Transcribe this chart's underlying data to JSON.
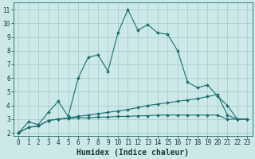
{
  "xlabel": "Humidex (Indice chaleur)",
  "bg_color": "#cce8e8",
  "grid_color": "#aacece",
  "line_color": "#1a6e6e",
  "xlim_min": -0.5,
  "xlim_max": 23.5,
  "ylim_min": 1.8,
  "ylim_max": 11.5,
  "xticks": [
    0,
    1,
    2,
    3,
    4,
    5,
    6,
    7,
    8,
    9,
    10,
    11,
    12,
    13,
    14,
    15,
    16,
    17,
    18,
    19,
    20,
    21,
    22,
    23
  ],
  "yticks": [
    2,
    3,
    4,
    5,
    6,
    7,
    8,
    9,
    10,
    11
  ],
  "series": [
    {
      "x": [
        0,
        1,
        2,
        3,
        4,
        5,
        6,
        7,
        8,
        9,
        10,
        11,
        12,
        13,
        14,
        15,
        16,
        17,
        18,
        19,
        20,
        21,
        22,
        23
      ],
      "y": [
        2.0,
        2.8,
        2.6,
        3.5,
        4.3,
        3.2,
        6.0,
        7.5,
        7.7,
        6.5,
        9.3,
        11.0,
        9.5,
        9.9,
        9.3,
        9.2,
        8.0,
        5.7,
        5.3,
        5.5,
        4.7,
        4.0,
        3.0,
        3.0
      ],
      "marker": "D",
      "markersize": 2.0,
      "linewidth": 0.8
    },
    {
      "x": [
        0,
        1,
        2,
        3,
        4,
        5,
        6,
        7,
        8,
        9,
        10,
        11,
        12,
        13,
        14,
        15,
        16,
        17,
        18,
        19,
        20,
        21,
        22,
        23
      ],
      "y": [
        2.0,
        2.4,
        2.5,
        2.9,
        3.0,
        3.1,
        3.2,
        3.3,
        3.4,
        3.5,
        3.6,
        3.7,
        3.85,
        4.0,
        4.1,
        4.2,
        4.3,
        4.4,
        4.5,
        4.65,
        4.8,
        3.3,
        3.0,
        3.0
      ],
      "marker": "D",
      "markersize": 2.0,
      "linewidth": 0.8
    },
    {
      "x": [
        0,
        1,
        2,
        3,
        4,
        5,
        6,
        7,
        8,
        9,
        10,
        11,
        12,
        13,
        14,
        15,
        16,
        17,
        18,
        19,
        20,
        21,
        22,
        23
      ],
      "y": [
        2.0,
        2.4,
        2.5,
        2.9,
        3.0,
        3.05,
        3.1,
        3.1,
        3.15,
        3.15,
        3.2,
        3.2,
        3.25,
        3.25,
        3.3,
        3.3,
        3.3,
        3.3,
        3.3,
        3.3,
        3.3,
        3.0,
        3.0,
        3.0
      ],
      "marker": "D",
      "markersize": 2.0,
      "linewidth": 0.8
    }
  ],
  "tick_fontsize": 5.5,
  "label_fontsize": 7.0
}
